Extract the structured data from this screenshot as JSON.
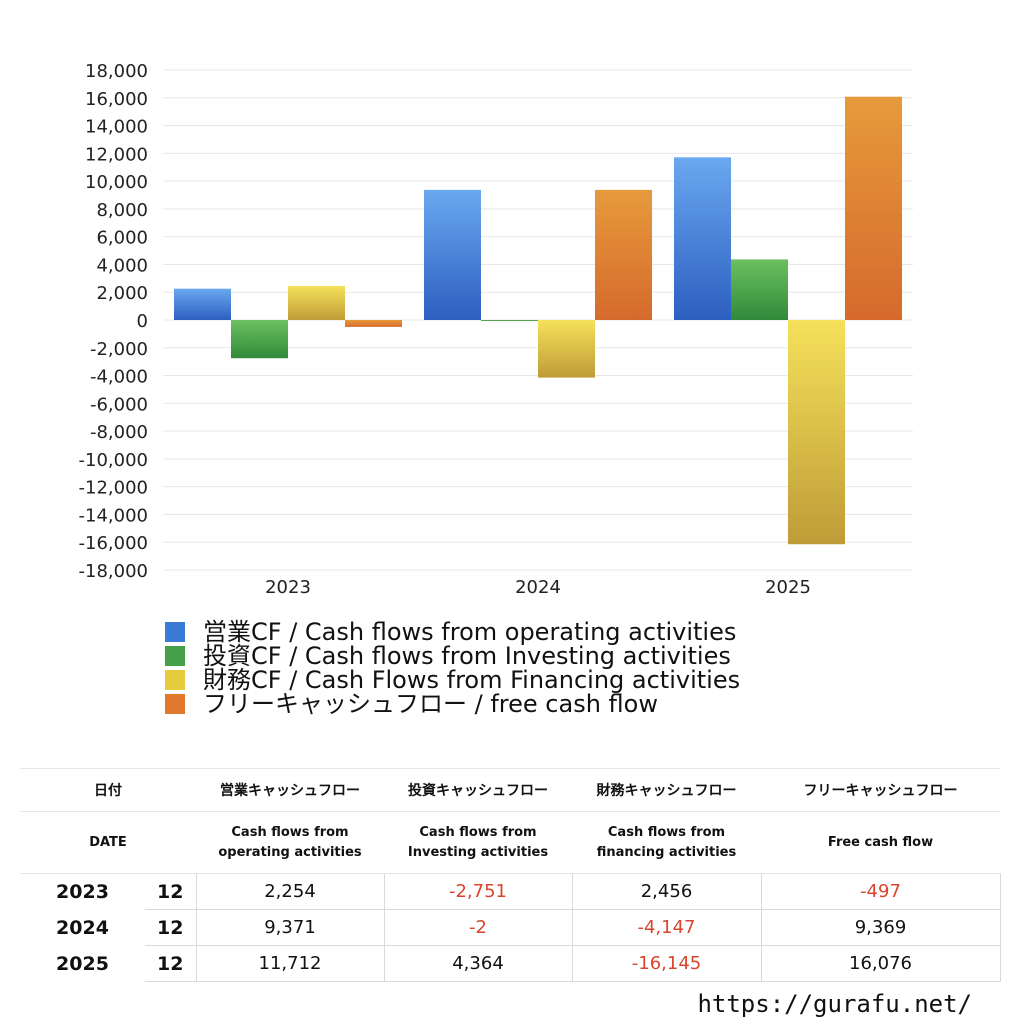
{
  "chart_data": {
    "type": "bar",
    "categories": [
      "2023",
      "2024",
      "2025"
    ],
    "series": [
      {
        "name": "営業CF / Cash flows from operating activities",
        "values": [
          2254,
          9371,
          11712
        ],
        "color": "#3a7bd5"
      },
      {
        "name": "投資CF / Cash flows from Investing activities",
        "values": [
          -2751,
          -2,
          4364
        ],
        "color": "#46a048"
      },
      {
        "name": "財務CF / Cash Flows from Financing activities",
        "values": [
          2456,
          -4147,
          -16145
        ],
        "color": "#e4cc3c"
      },
      {
        "name": "フリーキャッシュフロー / free cash flow",
        "values": [
          -497,
          9369,
          16076
        ],
        "color": "#e0782e"
      }
    ],
    "ylim": [
      -18000,
      18000
    ],
    "yticks": [
      18000,
      16000,
      14000,
      12000,
      10000,
      8000,
      6000,
      4000,
      2000,
      0,
      -2000,
      -4000,
      -6000,
      -8000,
      -10000,
      -12000,
      -14000,
      -16000,
      -18000
    ],
    "ytick_labels": [
      "18,000",
      "16,000",
      "14,000",
      "12,000",
      "10,000",
      "8,000",
      "6,000",
      "4,000",
      "2,000",
      "0",
      "-2,000",
      "-4,000",
      "-6,000",
      "-8,000",
      "-10,000",
      "-12,000",
      "-14,000",
      "-16,000",
      "-18,000"
    ],
    "grid": true,
    "legend_position": "bottom-left"
  },
  "table": {
    "header_jp": {
      "date": "日付",
      "operating": "営業キャッシュフロー",
      "investing": "投資キャッシュフロー",
      "financing": "財務キャッシュフロー",
      "free": "フリーキャッシュフロー"
    },
    "header_en": {
      "date": "DATE",
      "operating_l1": "Cash flows from",
      "operating_l2": "operating activities",
      "investing_l1": "Cash flows from",
      "investing_l2": "Investing activities",
      "financing_l1": "Cash flows from",
      "financing_l2": "financing activities",
      "free": "Free cash flow"
    },
    "rows": [
      {
        "year": "2023",
        "month": "12",
        "operating": "2,254",
        "investing": "-2,751",
        "financing": "2,456",
        "free": "-497"
      },
      {
        "year": "2024",
        "month": "12",
        "operating": "9,371",
        "investing": "-2",
        "financing": "-4,147",
        "free": "9,369"
      },
      {
        "year": "2025",
        "month": "12",
        "operating": "11,712",
        "investing": "4,364",
        "financing": "-16,145",
        "free": "16,076"
      }
    ]
  },
  "footer": {
    "url": "https://gurafu.net/"
  }
}
